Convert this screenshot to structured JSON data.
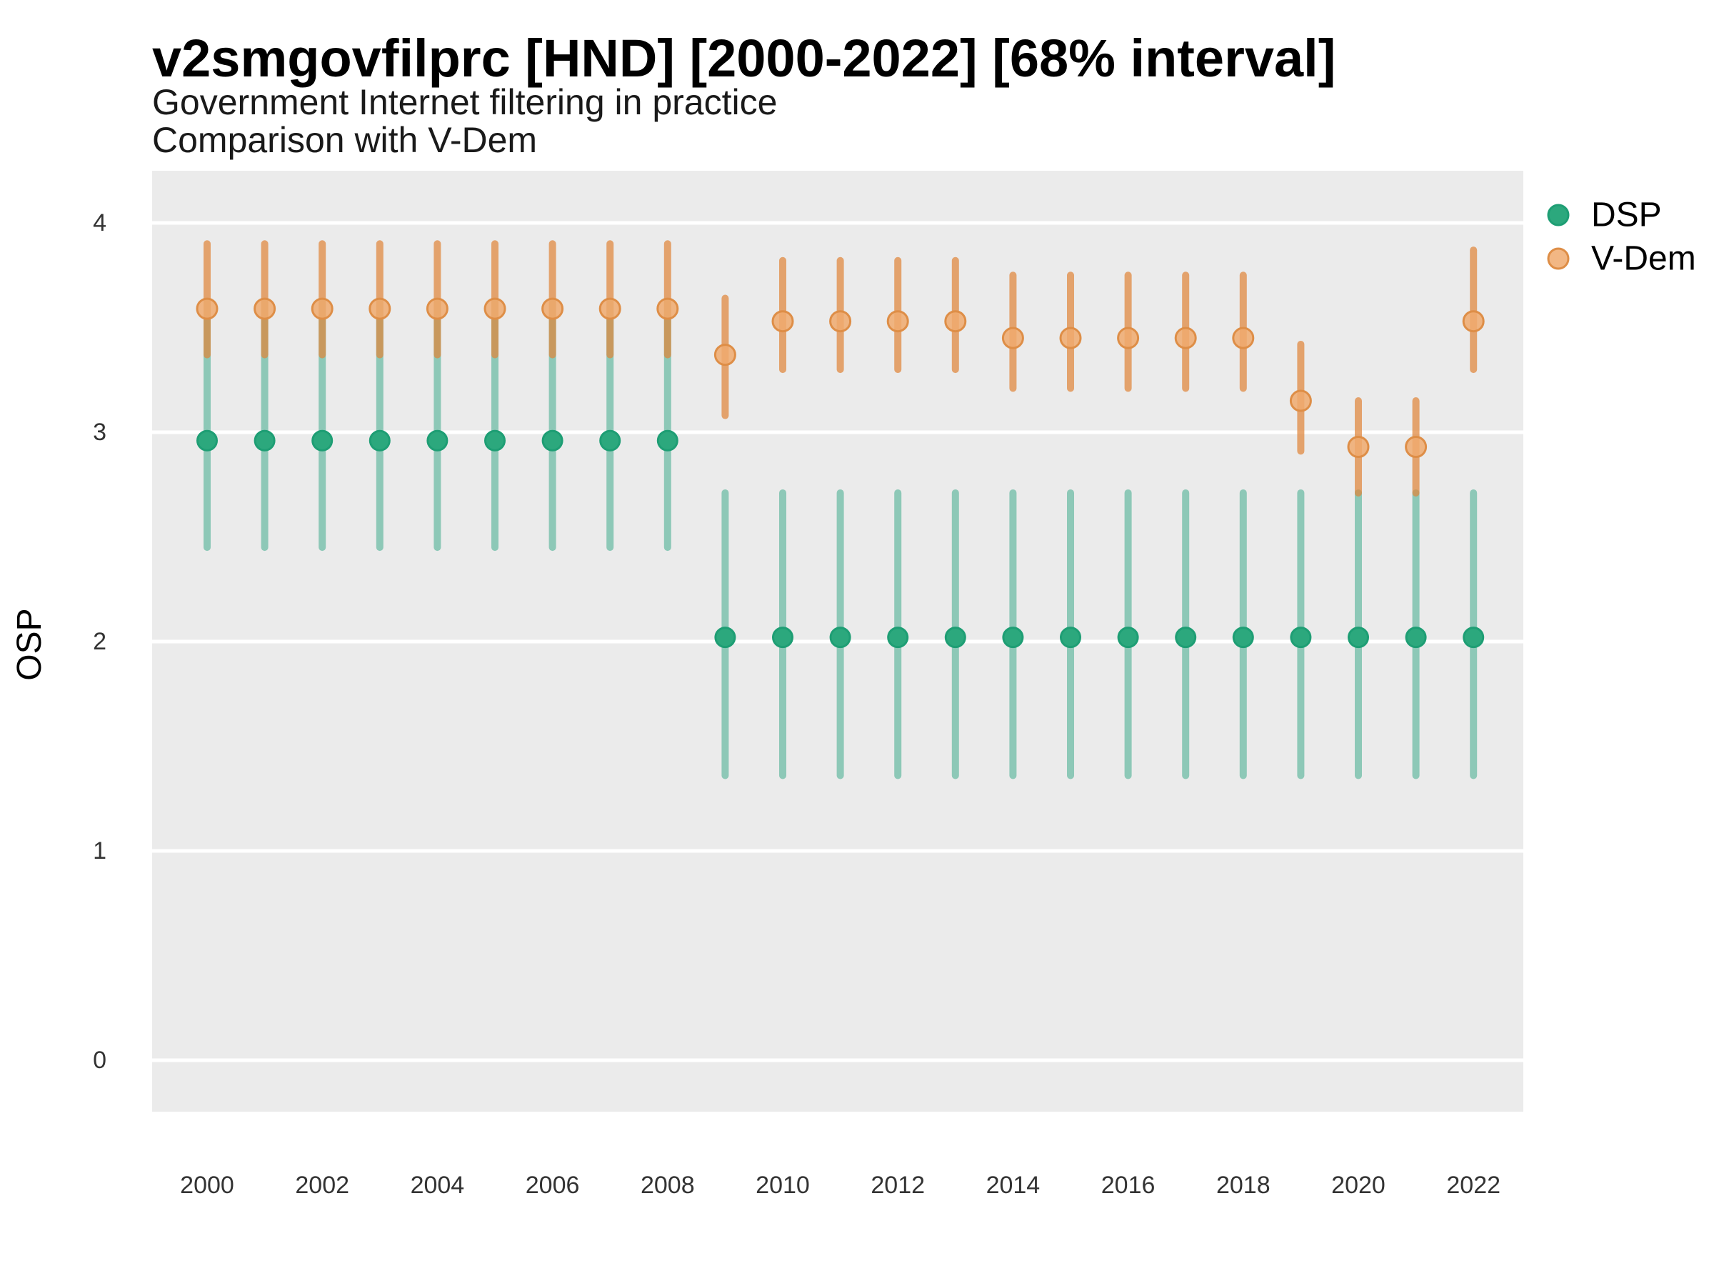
{
  "chart_data": {
    "type": "scatter",
    "subtype": "pointrange-comparison",
    "title": "v2smgovfilprc [HND] [2000-2022] [68% interval]",
    "subtitle_line1": "Government Internet filtering in practice",
    "subtitle_line2": "Comparison with V-Dem",
    "xlabel": "",
    "ylabel": "OSP",
    "interval": "68%",
    "ylim": [
      -0.25,
      4.25
    ],
    "yticks": [
      0,
      1,
      2,
      3,
      4
    ],
    "xticks": [
      2000,
      2002,
      2004,
      2006,
      2008,
      2010,
      2012,
      2014,
      2016,
      2018,
      2020,
      2022
    ],
    "x": [
      2000,
      2001,
      2002,
      2003,
      2004,
      2005,
      2006,
      2007,
      2008,
      2009,
      2010,
      2011,
      2012,
      2013,
      2014,
      2015,
      2016,
      2017,
      2018,
      2019,
      2020,
      2021,
      2022
    ],
    "legend_position": "right",
    "grid": "horizontal-major-only",
    "series": [
      {
        "name": "DSP",
        "est": [
          2.96,
          2.96,
          2.96,
          2.96,
          2.96,
          2.96,
          2.96,
          2.96,
          2.96,
          2.02,
          2.02,
          2.02,
          2.02,
          2.02,
          2.02,
          2.02,
          2.02,
          2.02,
          2.02,
          2.02,
          2.02,
          2.02,
          2.02
        ],
        "lo": [
          2.45,
          2.45,
          2.45,
          2.45,
          2.45,
          2.45,
          2.45,
          2.45,
          2.45,
          1.36,
          1.36,
          1.36,
          1.36,
          1.36,
          1.36,
          1.36,
          1.36,
          1.36,
          1.36,
          1.36,
          1.36,
          1.36,
          1.36
        ],
        "hi": [
          3.62,
          3.62,
          3.62,
          3.62,
          3.62,
          3.62,
          3.62,
          3.62,
          3.62,
          2.71,
          2.71,
          2.71,
          2.71,
          2.71,
          2.71,
          2.71,
          2.71,
          2.71,
          2.71,
          2.71,
          2.71,
          2.71,
          2.71
        ]
      },
      {
        "name": "V-Dem",
        "est": [
          3.59,
          3.59,
          3.59,
          3.59,
          3.59,
          3.59,
          3.59,
          3.59,
          3.59,
          3.37,
          3.53,
          3.53,
          3.53,
          3.53,
          3.45,
          3.45,
          3.45,
          3.45,
          3.45,
          3.15,
          2.93,
          2.93,
          3.53
        ],
        "lo": [
          3.37,
          3.37,
          3.37,
          3.37,
          3.37,
          3.37,
          3.37,
          3.37,
          3.37,
          3.08,
          3.3,
          3.3,
          3.3,
          3.3,
          3.21,
          3.21,
          3.21,
          3.21,
          3.21,
          2.91,
          2.71,
          2.71,
          3.3
        ],
        "hi": [
          3.9,
          3.9,
          3.9,
          3.9,
          3.9,
          3.9,
          3.9,
          3.9,
          3.9,
          3.64,
          3.82,
          3.82,
          3.82,
          3.82,
          3.75,
          3.75,
          3.75,
          3.75,
          3.75,
          3.42,
          3.15,
          3.15,
          3.87
        ]
      }
    ]
  },
  "legend": {
    "entries": [
      {
        "label": "DSP"
      },
      {
        "label": "V-Dem"
      }
    ]
  },
  "colors": {
    "background": "#FFFFFF",
    "panel": "#EBEBEB",
    "gridline": "#FFFFFF",
    "dsp_solid": "#1B9E77",
    "dsp_point_fill": "#2CA87D",
    "dsp_point_stroke": "#1E9E74",
    "dsp_bar": "rgba(27,158,119,0.45)",
    "vdem_solid": "#E08A40",
    "vdem_point_fill": "rgba(240,170,110,0.85)",
    "vdem_point_stroke": "#DE8E47",
    "vdem_bar": "rgba(223,133,58,0.72)",
    "tick_text": "#333333",
    "text": "#000000"
  }
}
